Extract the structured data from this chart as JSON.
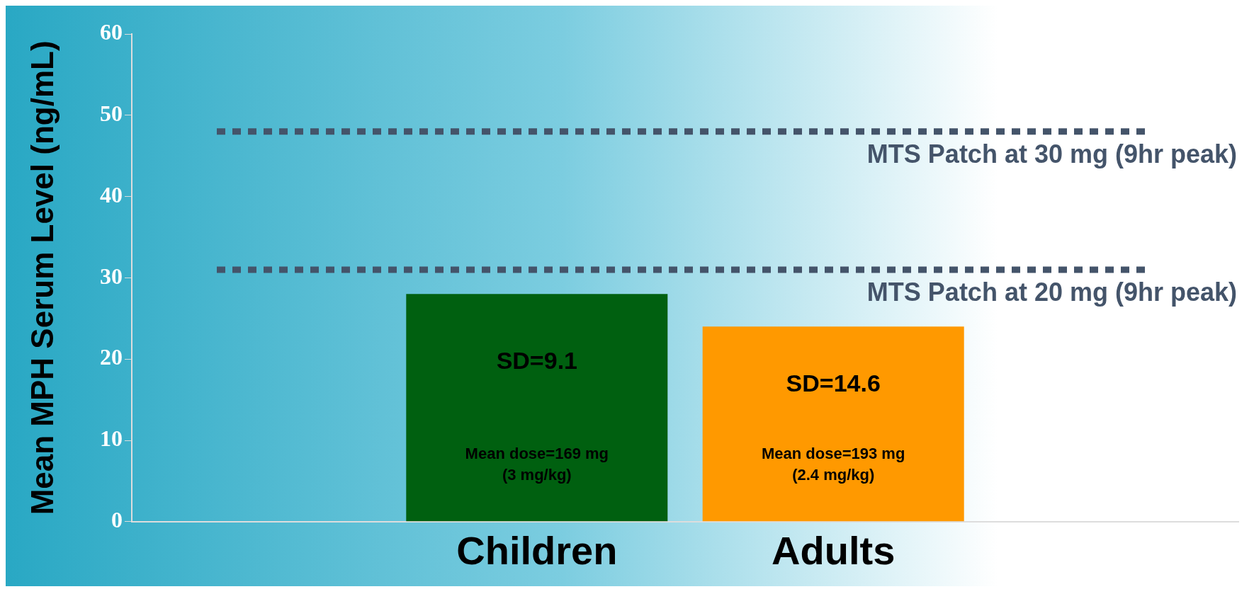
{
  "chart_data": {
    "type": "bar",
    "ylabel": "Mean MPH Serum Level (ng/mL)",
    "categories": [
      "Children",
      "Adults"
    ],
    "values": [
      28,
      24
    ],
    "colors": [
      "#006010",
      "#ff9900"
    ],
    "ylim": [
      0,
      60
    ],
    "yticks": [
      0,
      10,
      20,
      30,
      40,
      50,
      60
    ],
    "ref_lines": [
      {
        "axis": "y",
        "value": 48,
        "label": "MTS Patch at 30 mg (9hr peak)",
        "color": "#44546a",
        "line_style": "dotted"
      },
      {
        "axis": "y",
        "value": 31,
        "label": "MTS Patch at 20 mg (9hr peak)",
        "color": "#44546a",
        "line_style": "dotted"
      }
    ],
    "annotations": [
      "SD=9.1",
      "SD=14.6",
      "Mean dose=169 mg (3 mg/kg)",
      "Mean dose=193 mg (2.4 mg/kg)"
    ]
  }
}
